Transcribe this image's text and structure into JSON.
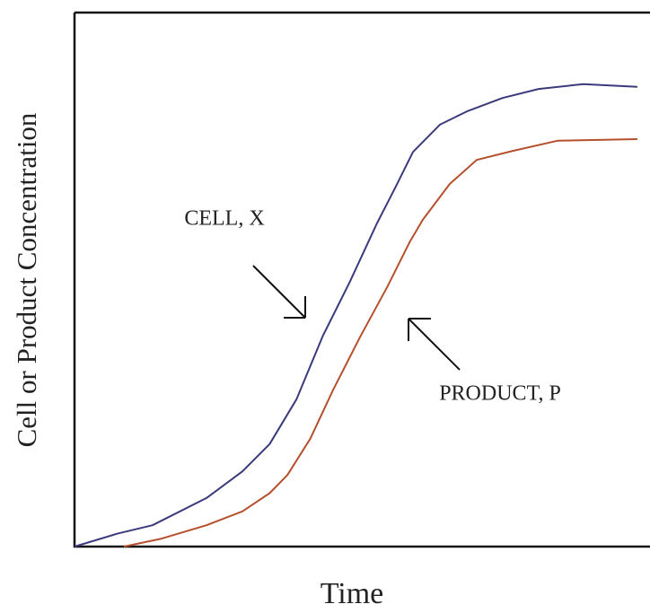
{
  "chart_data": {
    "type": "line",
    "xlabel": "Time",
    "ylabel": "Cell or Product Concentration",
    "xlim": [
      0,
      100
    ],
    "ylim": [
      0,
      100
    ],
    "series": [
      {
        "name": "CELL, X",
        "color": "#3b3a7c",
        "x": [
          0,
          7.4,
          13.6,
          23,
          29.3,
          34,
          38.7,
          43.3,
          48,
          52.7,
          55.9,
          59,
          63.7,
          68.4,
          74.6,
          80.9,
          88.7,
          98.1
        ],
        "values": [
          0,
          2.4,
          4.0,
          9.1,
          14.1,
          19.2,
          27.6,
          39.5,
          49.6,
          60.5,
          67.2,
          73.9,
          79,
          81.5,
          84,
          85.7,
          86.6,
          86.1
        ]
      },
      {
        "name": "PRODUCT, P",
        "color": "#b5502e",
        "x": [
          8.6,
          15.2,
          23,
          29.3,
          34,
          37.1,
          41.1,
          45.1,
          49.8,
          54.5,
          58.4,
          60.7,
          65.4,
          70.1,
          76.4,
          84.2,
          98.1
        ],
        "values": [
          0,
          1.5,
          4.0,
          6.6,
          10.0,
          13.4,
          20.2,
          29.4,
          39.3,
          48.6,
          57.0,
          61.2,
          67.9,
          72.4,
          74.1,
          76.0,
          76.3
        ]
      }
    ]
  }
}
